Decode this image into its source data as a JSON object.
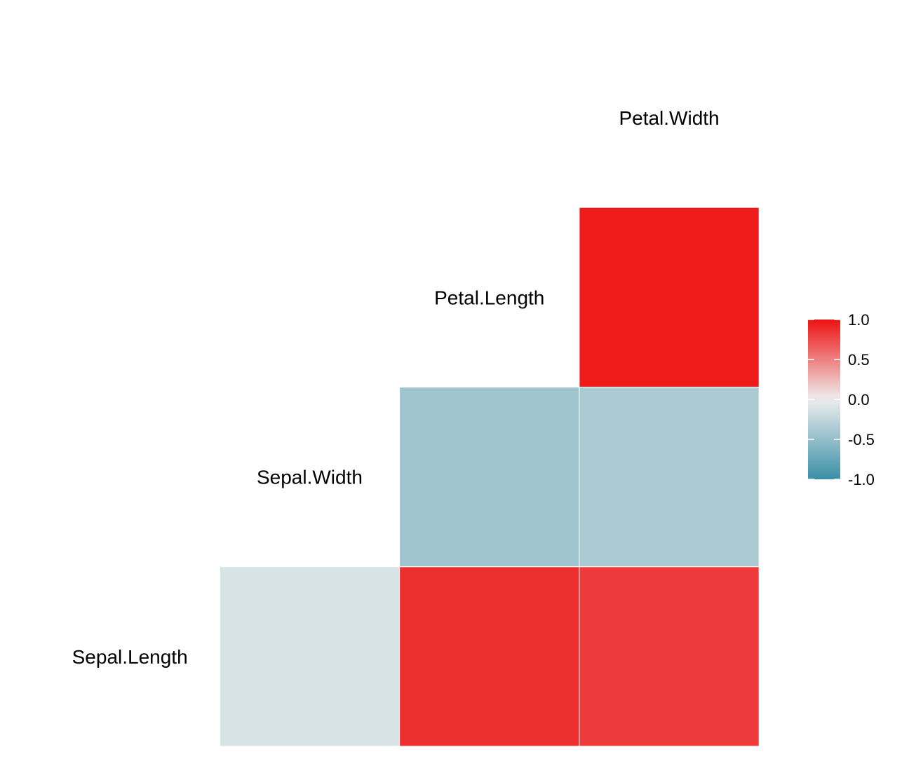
{
  "chart_data": {
    "type": "heatmap",
    "title": "",
    "variables": [
      "Sepal.Length",
      "Sepal.Width",
      "Petal.Length",
      "Petal.Width"
    ],
    "layout": "upper-triangle",
    "cells": [
      {
        "row": "Sepal.Length",
        "col": "Sepal.Width",
        "value": -0.12
      },
      {
        "row": "Sepal.Length",
        "col": "Petal.Length",
        "value": 0.87
      },
      {
        "row": "Sepal.Length",
        "col": "Petal.Width",
        "value": 0.82
      },
      {
        "row": "Sepal.Width",
        "col": "Petal.Length",
        "value": -0.43
      },
      {
        "row": "Sepal.Width",
        "col": "Petal.Width",
        "value": -0.37
      },
      {
        "row": "Petal.Length",
        "col": "Petal.Width",
        "value": 0.96
      }
    ],
    "color_scale": {
      "low": "#3A8FA6",
      "mid": "#EEEEEE",
      "high": "#EE1212",
      "range": [
        -1,
        1
      ]
    },
    "legend": {
      "position": "right",
      "ticks": [
        "1.0",
        "0.5",
        "0.0",
        "-0.5",
        "-1.0"
      ],
      "tick_values": [
        1.0,
        0.5,
        0.0,
        -0.5,
        -1.0
      ]
    },
    "grid": false
  }
}
